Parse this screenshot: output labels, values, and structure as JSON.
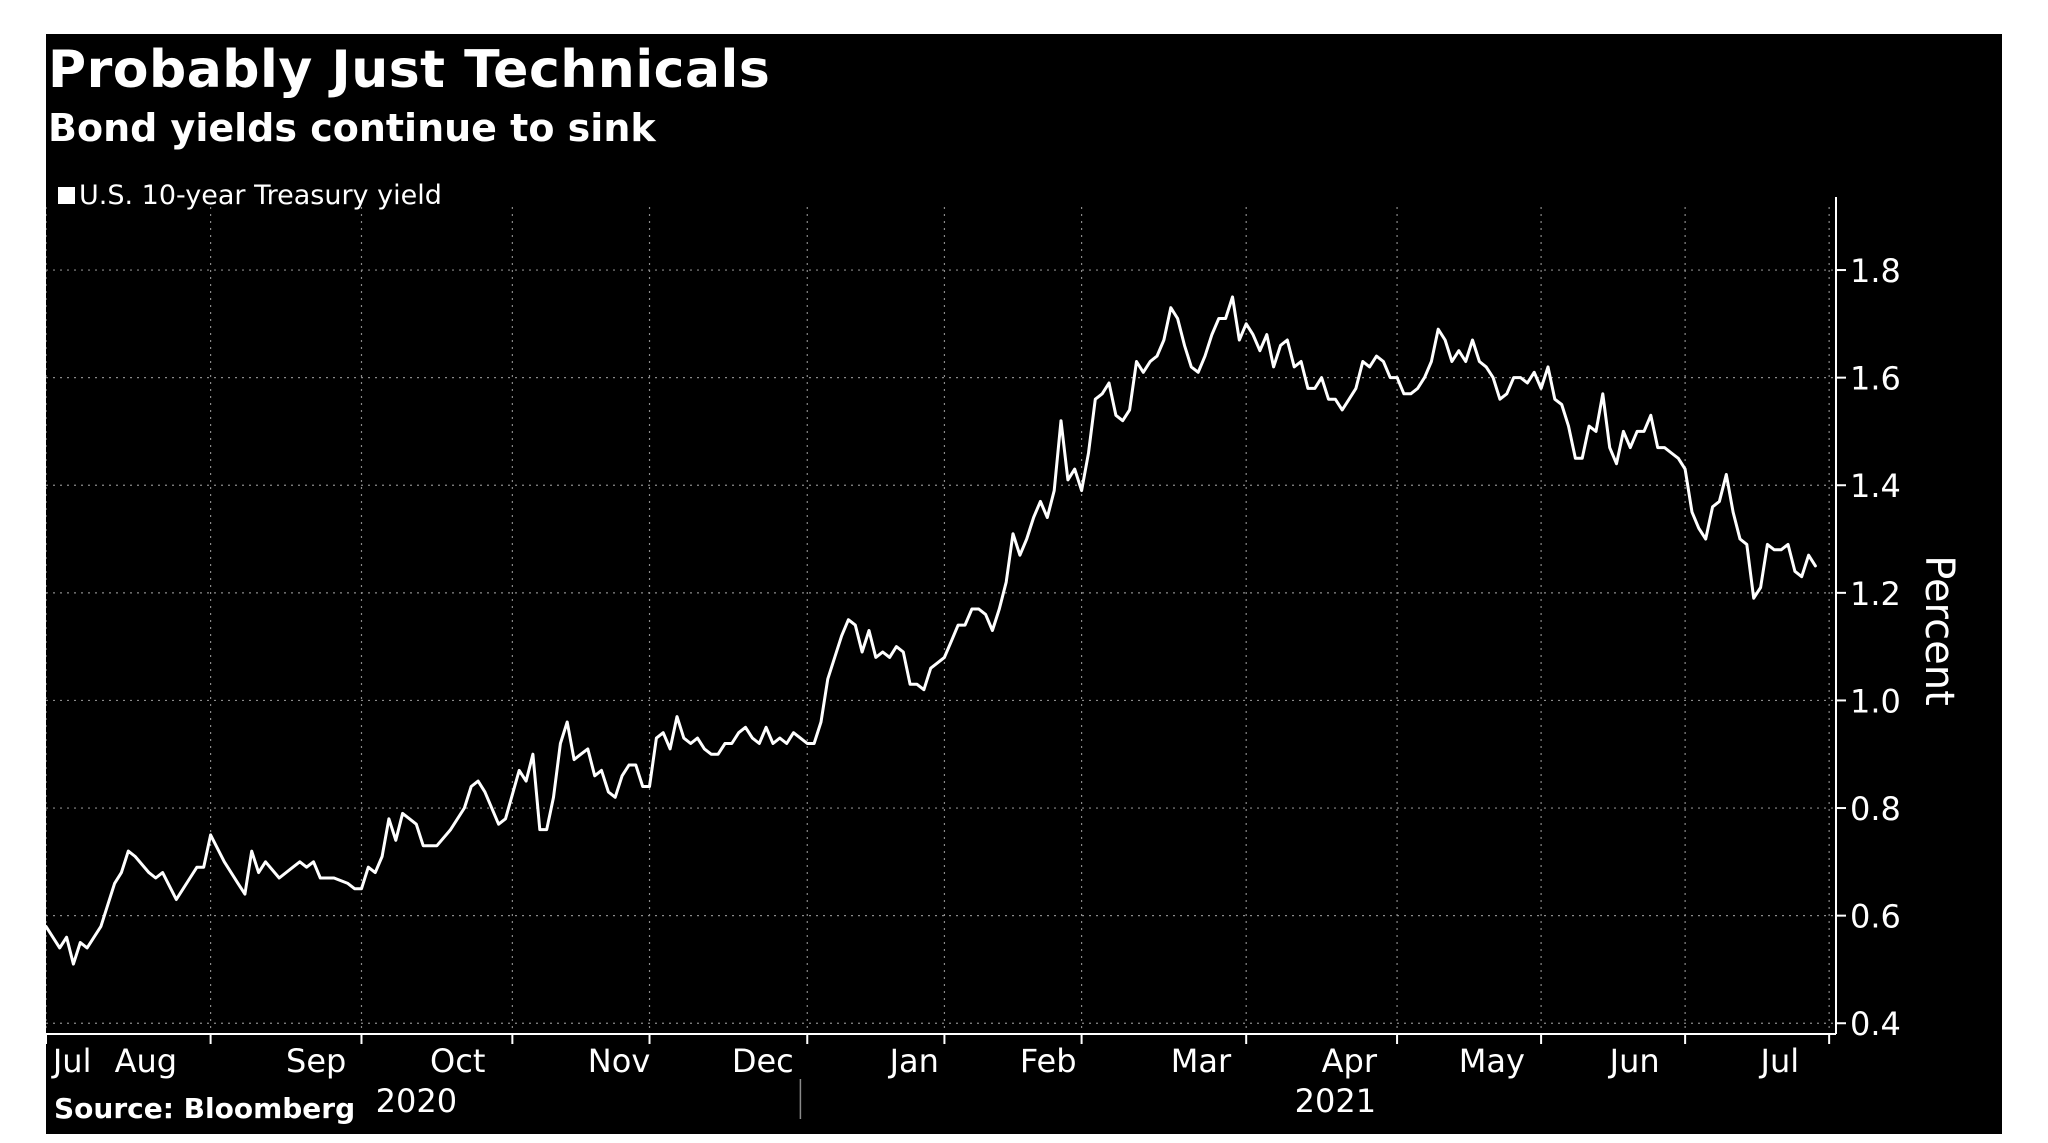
{
  "chart_data": {
    "type": "line",
    "title": "Probably Just Technicals",
    "subtitle": "Bond yields continue to sink",
    "source": "Source: Bloomberg",
    "xlabel": "",
    "ylabel": "Percent",
    "ylim": [
      0.38,
      1.88
    ],
    "yticks": [
      0.4,
      0.6,
      0.8,
      1.0,
      1.2,
      1.4,
      1.6,
      1.8
    ],
    "ytick_labels": [
      "0.4",
      "0.6",
      "0.8",
      "1.0",
      "1.2",
      "1.4",
      "1.6",
      "1.8"
    ],
    "grid": true,
    "legend_position": "top-left",
    "x_unit": "trading days since Jul 27, 2020",
    "xlim": [
      0,
      261
    ],
    "month_labels": [
      {
        "label": "Jul",
        "x": 1
      },
      {
        "label": "Aug",
        "x": 10
      },
      {
        "label": "Sep",
        "x": 35
      },
      {
        "label": "Oct",
        "x": 56
      },
      {
        "label": "Nov",
        "x": 79
      },
      {
        "label": "Dec",
        "x": 100
      },
      {
        "label": "Jan",
        "x": 123
      },
      {
        "label": "Feb",
        "x": 142
      },
      {
        "label": "Mar",
        "x": 164
      },
      {
        "label": "Apr",
        "x": 186
      },
      {
        "label": "May",
        "x": 206
      },
      {
        "label": "Jun",
        "x": 228
      },
      {
        "label": "Jul",
        "x": 250
      }
    ],
    "month_boundaries": [
      0,
      24,
      46,
      68,
      88,
      111,
      131,
      151,
      175,
      197,
      218,
      239,
      260
    ],
    "year_labels": [
      {
        "label": "2020",
        "x": 54
      },
      {
        "label": "2021",
        "x": 188
      }
    ],
    "year_boundary": 110,
    "series": [
      {
        "name": "U.S. 10-year Treasury yield",
        "color": "#ffffff",
        "points": [
          [
            0,
            0.58
          ],
          [
            2,
            0.54
          ],
          [
            3,
            0.56
          ],
          [
            4,
            0.51
          ],
          [
            5,
            0.55
          ],
          [
            6,
            0.54
          ],
          [
            8,
            0.58
          ],
          [
            10,
            0.66
          ],
          [
            11,
            0.68
          ],
          [
            12,
            0.72
          ],
          [
            13,
            0.71
          ],
          [
            15,
            0.68
          ],
          [
            16,
            0.67
          ],
          [
            17,
            0.68
          ],
          [
            19,
            0.63
          ],
          [
            21,
            0.67
          ],
          [
            22,
            0.69
          ],
          [
            23,
            0.69
          ],
          [
            24,
            0.75
          ],
          [
            26,
            0.7
          ],
          [
            28,
            0.66
          ],
          [
            29,
            0.64
          ],
          [
            30,
            0.72
          ],
          [
            31,
            0.68
          ],
          [
            32,
            0.7
          ],
          [
            34,
            0.67
          ],
          [
            36,
            0.69
          ],
          [
            37,
            0.7
          ],
          [
            38,
            0.69
          ],
          [
            39,
            0.7
          ],
          [
            40,
            0.67
          ],
          [
            42,
            0.67
          ],
          [
            44,
            0.66
          ],
          [
            45,
            0.65
          ],
          [
            46,
            0.65
          ],
          [
            47,
            0.69
          ],
          [
            48,
            0.68
          ],
          [
            49,
            0.71
          ],
          [
            50,
            0.78
          ],
          [
            51,
            0.74
          ],
          [
            52,
            0.79
          ],
          [
            53,
            0.78
          ],
          [
            54,
            0.77
          ],
          [
            55,
            0.73
          ],
          [
            57,
            0.73
          ],
          [
            59,
            0.76
          ],
          [
            61,
            0.8
          ],
          [
            62,
            0.84
          ],
          [
            63,
            0.85
          ],
          [
            64,
            0.83
          ],
          [
            66,
            0.77
          ],
          [
            67,
            0.78
          ],
          [
            69,
            0.87
          ],
          [
            70,
            0.85
          ],
          [
            71,
            0.9
          ],
          [
            72,
            0.76
          ],
          [
            73,
            0.76
          ],
          [
            74,
            0.82
          ],
          [
            75,
            0.92
          ],
          [
            76,
            0.96
          ],
          [
            77,
            0.89
          ],
          [
            78,
            0.9
          ],
          [
            79,
            0.91
          ],
          [
            80,
            0.86
          ],
          [
            81,
            0.87
          ],
          [
            82,
            0.83
          ],
          [
            83,
            0.82
          ],
          [
            84,
            0.86
          ],
          [
            85,
            0.88
          ],
          [
            86,
            0.88
          ],
          [
            87,
            0.84
          ],
          [
            88,
            0.84
          ],
          [
            89,
            0.93
          ],
          [
            90,
            0.94
          ],
          [
            91,
            0.91
          ],
          [
            92,
            0.97
          ],
          [
            93,
            0.93
          ],
          [
            94,
            0.92
          ],
          [
            95,
            0.93
          ],
          [
            96,
            0.91
          ],
          [
            97,
            0.9
          ],
          [
            98,
            0.9
          ],
          [
            99,
            0.92
          ],
          [
            100,
            0.92
          ],
          [
            101,
            0.94
          ],
          [
            102,
            0.95
          ],
          [
            103,
            0.93
          ],
          [
            104,
            0.92
          ],
          [
            105,
            0.95
          ],
          [
            106,
            0.92
          ],
          [
            107,
            0.93
          ],
          [
            108,
            0.92
          ],
          [
            109,
            0.94
          ],
          [
            110,
            0.93
          ],
          [
            111,
            0.92
          ],
          [
            112,
            0.92
          ],
          [
            113,
            0.96
          ],
          [
            114,
            1.04
          ],
          [
            115,
            1.08
          ],
          [
            116,
            1.12
          ],
          [
            117,
            1.15
          ],
          [
            118,
            1.14
          ],
          [
            119,
            1.09
          ],
          [
            120,
            1.13
          ],
          [
            121,
            1.08
          ],
          [
            122,
            1.09
          ],
          [
            123,
            1.08
          ],
          [
            124,
            1.1
          ],
          [
            125,
            1.09
          ],
          [
            126,
            1.03
          ],
          [
            127,
            1.03
          ],
          [
            128,
            1.02
          ],
          [
            129,
            1.06
          ],
          [
            130,
            1.07
          ],
          [
            131,
            1.08
          ],
          [
            132,
            1.11
          ],
          [
            133,
            1.14
          ],
          [
            134,
            1.14
          ],
          [
            135,
            1.17
          ],
          [
            136,
            1.17
          ],
          [
            137,
            1.16
          ],
          [
            138,
            1.13
          ],
          [
            139,
            1.17
          ],
          [
            140,
            1.22
          ],
          [
            141,
            1.31
          ],
          [
            142,
            1.27
          ],
          [
            143,
            1.3
          ],
          [
            144,
            1.34
          ],
          [
            145,
            1.37
          ],
          [
            146,
            1.34
          ],
          [
            147,
            1.39
          ],
          [
            148,
            1.52
          ],
          [
            149,
            1.41
          ],
          [
            150,
            1.43
          ],
          [
            151,
            1.39
          ],
          [
            152,
            1.46
          ],
          [
            153,
            1.56
          ],
          [
            154,
            1.57
          ],
          [
            155,
            1.59
          ],
          [
            156,
            1.53
          ],
          [
            157,
            1.52
          ],
          [
            158,
            1.54
          ],
          [
            159,
            1.63
          ],
          [
            160,
            1.61
          ],
          [
            161,
            1.63
          ],
          [
            162,
            1.64
          ],
          [
            163,
            1.67
          ],
          [
            164,
            1.73
          ],
          [
            165,
            1.71
          ],
          [
            166,
            1.66
          ],
          [
            167,
            1.62
          ],
          [
            168,
            1.61
          ],
          [
            169,
            1.64
          ],
          [
            170,
            1.68
          ],
          [
            171,
            1.71
          ],
          [
            172,
            1.71
          ],
          [
            173,
            1.75
          ],
          [
            174,
            1.67
          ],
          [
            175,
            1.7
          ],
          [
            176,
            1.68
          ],
          [
            177,
            1.65
          ],
          [
            178,
            1.68
          ],
          [
            179,
            1.62
          ],
          [
            180,
            1.66
          ],
          [
            181,
            1.67
          ],
          [
            182,
            1.62
          ],
          [
            183,
            1.63
          ],
          [
            184,
            1.58
          ],
          [
            185,
            1.58
          ],
          [
            186,
            1.6
          ],
          [
            187,
            1.56
          ],
          [
            188,
            1.56
          ],
          [
            189,
            1.54
          ],
          [
            190,
            1.56
          ],
          [
            191,
            1.58
          ],
          [
            192,
            1.63
          ],
          [
            193,
            1.62
          ],
          [
            194,
            1.64
          ],
          [
            195,
            1.63
          ],
          [
            196,
            1.6
          ],
          [
            197,
            1.6
          ],
          [
            198,
            1.57
          ],
          [
            199,
            1.57
          ],
          [
            200,
            1.58
          ],
          [
            201,
            1.6
          ],
          [
            202,
            1.63
          ],
          [
            203,
            1.69
          ],
          [
            204,
            1.67
          ],
          [
            205,
            1.63
          ],
          [
            206,
            1.65
          ],
          [
            207,
            1.63
          ],
          [
            208,
            1.67
          ],
          [
            209,
            1.63
          ],
          [
            210,
            1.62
          ],
          [
            211,
            1.6
          ],
          [
            212,
            1.56
          ],
          [
            213,
            1.57
          ],
          [
            214,
            1.6
          ],
          [
            215,
            1.6
          ],
          [
            216,
            1.59
          ],
          [
            217,
            1.61
          ],
          [
            218,
            1.58
          ],
          [
            219,
            1.62
          ],
          [
            220,
            1.56
          ],
          [
            221,
            1.55
          ],
          [
            222,
            1.51
          ],
          [
            223,
            1.45
          ],
          [
            224,
            1.45
          ],
          [
            225,
            1.51
          ],
          [
            226,
            1.5
          ],
          [
            227,
            1.57
          ],
          [
            228,
            1.47
          ],
          [
            229,
            1.44
          ],
          [
            230,
            1.5
          ],
          [
            231,
            1.47
          ],
          [
            232,
            1.5
          ],
          [
            233,
            1.5
          ],
          [
            234,
            1.53
          ],
          [
            235,
            1.47
          ],
          [
            236,
            1.47
          ],
          [
            237,
            1.46
          ],
          [
            238,
            1.45
          ],
          [
            239,
            1.43
          ],
          [
            240,
            1.35
          ],
          [
            241,
            1.32
          ],
          [
            242,
            1.3
          ],
          [
            243,
            1.36
          ],
          [
            244,
            1.37
          ],
          [
            245,
            1.42
          ],
          [
            246,
            1.35
          ],
          [
            247,
            1.3
          ],
          [
            248,
            1.29
          ],
          [
            249,
            1.19
          ],
          [
            250,
            1.21
          ],
          [
            251,
            1.29
          ],
          [
            252,
            1.28
          ],
          [
            253,
            1.28
          ],
          [
            254,
            1.29
          ],
          [
            255,
            1.24
          ],
          [
            256,
            1.23
          ],
          [
            257,
            1.27
          ],
          [
            258,
            1.25
          ]
        ]
      }
    ]
  }
}
